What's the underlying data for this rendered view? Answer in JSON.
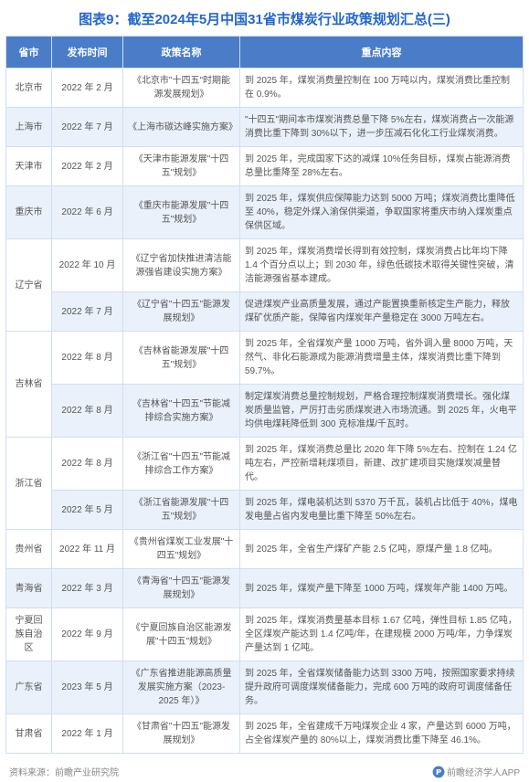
{
  "title": "图表9：截至2024年5月中国31省市煤炭行业政策规划汇总(三)",
  "headers": {
    "province": "省市",
    "date": "发布时间",
    "policy": "政策名称",
    "content": "重点内容"
  },
  "colors": {
    "title": "#2266cc",
    "header_bg": "#4a7cc7",
    "header_text": "#ffffff",
    "row_odd": "#ffffff",
    "row_even": "#eaf1fa",
    "border": "#d0dff0",
    "cell_text": "#555555"
  },
  "rows": [
    {
      "province": "北京市",
      "date": "2022 年 2 月",
      "policy": "《北京市\"十四五\"时期能源发展规划》",
      "content": "到 2025 年，煤炭消费量控制在 100 万吨以内，煤炭消费比重控制在 0.9%。",
      "shade": "odd"
    },
    {
      "province": "上海市",
      "date": "2022 年 7 月",
      "policy": "《上海市碳达峰实施方案》",
      "content": "\"十四五\"期间本市煤炭消费总量下降 5%左右，煤炭消费占一次能源消费比重下降到 30%以下，进一步压减石化化工行业煤炭消费。",
      "shade": "even"
    },
    {
      "province": "天津市",
      "date": "2022 年 2 月",
      "policy": "《天津市能源发展\"十四五\"规划》",
      "content": "到 2025 年，完成国家下达的减煤 10%任务目标，煤炭占能源消费总量比重降至 28%左右。",
      "shade": "odd"
    },
    {
      "province": "重庆市",
      "date": "2022 年 6 月",
      "policy": "《重庆市能源发展\"十四五\"规划》",
      "content": "到 2025 年，煤炭供应保障能力达到 5000 万吨；煤炭消费比重降低至 40%，稳定外煤入渝保供渠道，争取国家将重庆市纳入煤炭重点保供区域。",
      "shade": "even"
    },
    {
      "province": "辽宁省",
      "rowspan": 2,
      "date": "2022 年 10 月",
      "policy": "《辽宁省加快推进清洁能源强省建设实施方案》",
      "content": "到 2025 年，煤炭消费增长得到有效控制，煤炭消费占比年均下降 1.4 个百分点以上；到 2030 年，绿色低碳技术取得关键性突破，清洁能源强省基本建成。",
      "shade": "odd"
    },
    {
      "province": "",
      "date": "2022 年 7 月",
      "policy": "《辽宁省\"十四五\"能源发展规划》",
      "content": "促进煤炭产业高质量发展，通过产能置换重新核定生产能力，释放煤矿优质产能，保障省内煤炭年产量稳定在 3000 万吨左右。",
      "shade": "even"
    },
    {
      "province": "吉林省",
      "rowspan": 2,
      "date": "2022 年 8 月",
      "policy": "《吉林省能源发展\"十四五\"规划》",
      "content": "到 2025 年，全省煤炭产量 1000 万吨，省外调入量 8000 万吨，天然气、非化石能源成为能源消费增量主体，煤炭消费比重下降到 59.7%。",
      "shade": "odd"
    },
    {
      "province": "",
      "date": "2022 年 8 月",
      "policy": "《吉林省\"十四五\"节能减排综合实施方案》",
      "content": "制定煤炭消费总量控制规划，严格合理控制煤炭消费增长。强化煤炭质量监管，严厉打击劣质煤炭进入市场流通。到 2025 年，火电平均供电煤耗降低到 300 克标准煤/千瓦时。",
      "shade": "even"
    },
    {
      "province": "浙江省",
      "rowspan": 2,
      "date": "2022 年 8 月",
      "policy": "《浙江省\"十四五\"节能减排综合工作方案》",
      "content": "到 2025 年，煤炭消费总量比 2020 年下降 5%左右、控制在 1.24 亿吨左右，严控新增耗煤项目，新建、改扩建项目实施煤炭减量替代。",
      "shade": "odd"
    },
    {
      "province": "",
      "date": "2022 年 5 月",
      "policy": "《浙江省能源发展\"十四五\"规划》",
      "content": "到 2025 年，煤电装机达到 5370 万千瓦，装机占比低于 40%，煤电发电量占省内发电量比重下降至 50%左右。",
      "shade": "even"
    },
    {
      "province": "贵州省",
      "date": "2022 年 11 月",
      "policy": "《贵州省煤炭工业发展\"十四五\"规划》",
      "content": "到 2025 年，全省生产煤矿产能 2.5 亿吨，原煤产量 1.8 亿吨。",
      "shade": "odd"
    },
    {
      "province": "青海省",
      "date": "2022 年 3 月",
      "policy": "《青海省\"十四五\"能源发展规划》",
      "content": "到 2025 年，煤炭产量下降至 1000 万吨，煤炭年产能 1400 万吨。",
      "shade": "even"
    },
    {
      "province": "宁夏回族自治区",
      "date": "2022 年 9 月",
      "policy": "《宁夏回族自治区能源发展\"十四五\"规划》",
      "content": "到 2025 年，煤炭消费量基本目标 1.67 亿吨，弹性目标 1.85 亿吨，全区煤炭产能达到 1.4 亿吨/年，在建规模 2000 万吨/年，力争煤炭产量达到 1 亿吨。",
      "shade": "odd"
    },
    {
      "province": "广东省",
      "date": "2023 年 5 月",
      "policy": "《广东省推进能源高质量发展实施方案（2023-2025 年）》",
      "content": "到 2025 年，全省煤炭储备能力达到 3300 万吨，按照国家要求持续提升政府可调度煤炭储备能力，完成 600 万吨的政府可调度储备任务。",
      "shade": "even"
    },
    {
      "province": "甘肃省",
      "date": "2022 年 1 月",
      "policy": "《甘肃省\"十四五\"能源发展规划》",
      "content": "到 2025 年，全省建成千万吨煤炭企业 4 家，产量达到 6000 万吨，占全省煤炭产量的 80%以上，煤炭消费比重下降至 46.1%。",
      "shade": "odd"
    }
  ],
  "footer": {
    "source": "资料来源：前瞻产业研究院",
    "app": "前瞻经济学人APP"
  }
}
